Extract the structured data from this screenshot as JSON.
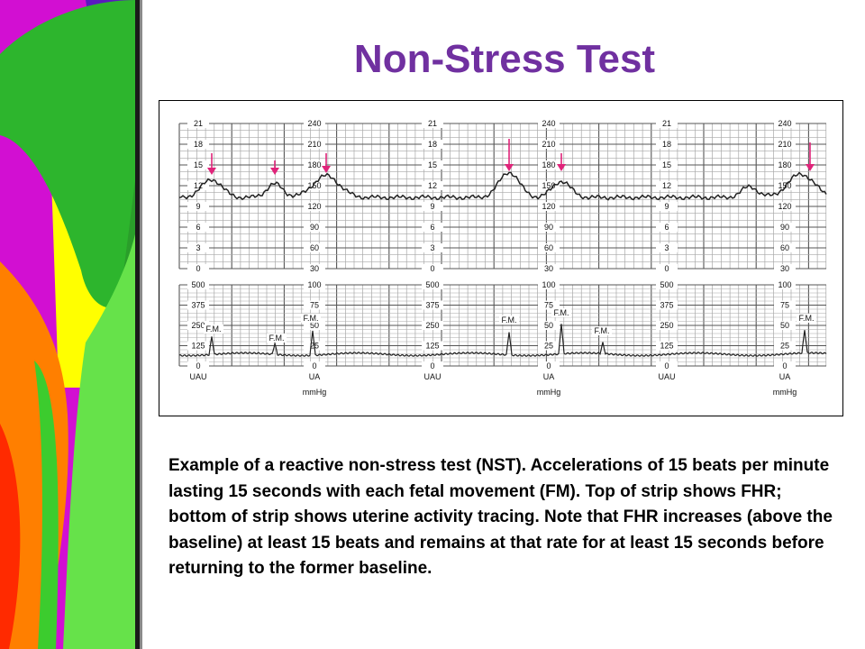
{
  "slide": {
    "title": "Non-Stress Test",
    "caption": "Example of a reactive non-stress test (NST). Accelerations of 15 beats per minute lasting 15 seconds with each fetal movement (FM). Top of strip shows FHR; bottom of strip shows uterine activity tracing. Note that FHR increases (above the baseline) at least 15 beats and remains at that rate for at least 15 seconds before returning to the former baseline.",
    "colors": {
      "title": "#7030a0",
      "arrow": "#e0247a",
      "deco_green": "#2db52d",
      "deco_lime": "#66e24a",
      "deco_magenta": "#d20fd2",
      "deco_yellow": "#ffff00",
      "deco_orange": "#ff7f00",
      "deco_red": "#ff2a00"
    }
  },
  "strip": {
    "fhr_left_labels": [
      "21",
      "18",
      "15",
      "12",
      "9",
      "6",
      "3",
      "0"
    ],
    "fhr_right_labels": [
      "240",
      "210",
      "180",
      "150",
      "120",
      "90",
      "60",
      "30"
    ],
    "ua_left_labels": [
      "500",
      "375",
      "250",
      "125",
      "0"
    ],
    "ua_right_labels": [
      "100",
      "75",
      "50",
      "25",
      "0"
    ],
    "ua_left_footer": "UAU",
    "ua_right_footer": "UA",
    "ua_unit": "mmHg",
    "fm_label": "F.M."
  }
}
